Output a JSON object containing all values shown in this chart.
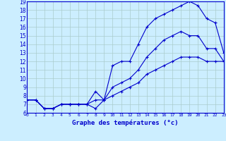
{
  "title": "Graphe des températures (°c)",
  "bg_color": "#cceeff",
  "grid_color": "#aacccc",
  "line_color": "#0000cc",
  "xlim": [
    0,
    23
  ],
  "ylim": [
    6,
    19
  ],
  "xticks": [
    0,
    1,
    2,
    3,
    4,
    5,
    6,
    7,
    8,
    9,
    10,
    11,
    12,
    13,
    14,
    15,
    16,
    17,
    18,
    19,
    20,
    21,
    22,
    23
  ],
  "yticks": [
    6,
    7,
    8,
    9,
    10,
    11,
    12,
    13,
    14,
    15,
    16,
    17,
    18,
    19
  ],
  "curve1_x": [
    0,
    1,
    2,
    3,
    4,
    5,
    6,
    7,
    8,
    9,
    10,
    11,
    12,
    13,
    14,
    15,
    16,
    17,
    18,
    19,
    20,
    21,
    22,
    23
  ],
  "curve1_y": [
    7.5,
    7.5,
    6.5,
    6.5,
    7.0,
    7.0,
    7.0,
    7.0,
    6.5,
    7.5,
    11.5,
    12.0,
    12.0,
    14.0,
    16.0,
    17.0,
    17.5,
    18.0,
    18.5,
    19.0,
    18.5,
    17.0,
    16.5,
    13.0
  ],
  "curve2_x": [
    0,
    1,
    2,
    3,
    4,
    5,
    6,
    7,
    8,
    9,
    10,
    11,
    12,
    13,
    14,
    15,
    16,
    17,
    18,
    19,
    20,
    21,
    22,
    23
  ],
  "curve2_y": [
    7.5,
    7.5,
    6.5,
    6.5,
    7.0,
    7.0,
    7.0,
    7.0,
    8.5,
    7.5,
    9.0,
    9.5,
    10.0,
    11.0,
    12.5,
    13.5,
    14.5,
    15.0,
    15.5,
    15.0,
    15.0,
    13.5,
    13.5,
    12.0
  ],
  "curve3_x": [
    0,
    1,
    2,
    3,
    4,
    5,
    6,
    7,
    8,
    9,
    10,
    11,
    12,
    13,
    14,
    15,
    16,
    17,
    18,
    19,
    20,
    21,
    22,
    23
  ],
  "curve3_y": [
    7.5,
    7.5,
    6.5,
    6.5,
    7.0,
    7.0,
    7.0,
    7.0,
    7.5,
    7.5,
    8.0,
    8.5,
    9.0,
    9.5,
    10.5,
    11.0,
    11.5,
    12.0,
    12.5,
    12.5,
    12.5,
    12.0,
    12.0,
    12.0
  ]
}
